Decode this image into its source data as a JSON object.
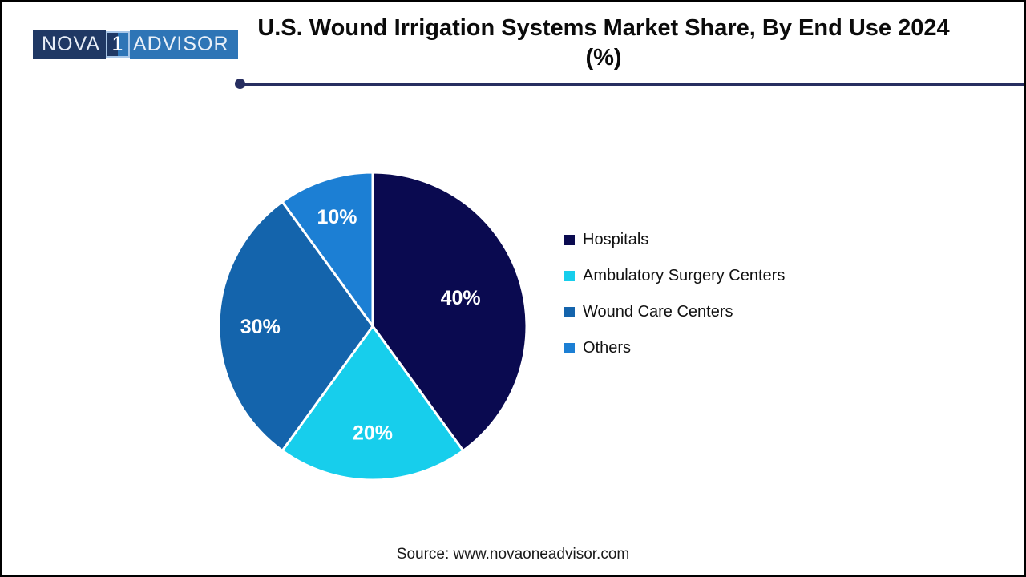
{
  "logo": {
    "part1": "NOVA",
    "part2": "1",
    "part3": "ADVISOR",
    "navy": "#1F3864",
    "blue": "#2E75B6"
  },
  "header": {
    "title_line1": "U.S. Wound Irrigation Systems Market Share, By End Use 2024",
    "title_line2": "(%)",
    "rule_color": "#272E60"
  },
  "chart_data": {
    "type": "pie",
    "title": "U.S. Wound Irrigation Systems Market Share, By End Use 2024 (%)",
    "unit": "%",
    "start_angle_deg": 0,
    "direction": "clockwise",
    "legend_position": "right",
    "slices": [
      {
        "label": "Hospitals",
        "value": 40,
        "data_label": "40%",
        "color": "#0A0A50"
      },
      {
        "label": "Ambulatory Surgery Centers",
        "value": 20,
        "data_label": "20%",
        "color": "#17CEEC"
      },
      {
        "label": "Wound Care Centers",
        "value": 30,
        "data_label": "30%",
        "color": "#1464AC"
      },
      {
        "label": "Others",
        "value": 10,
        "data_label": "10%",
        "color": "#1C7FD4"
      }
    ]
  },
  "footer": {
    "source": "Source: www.novaoneadvisor.com"
  }
}
